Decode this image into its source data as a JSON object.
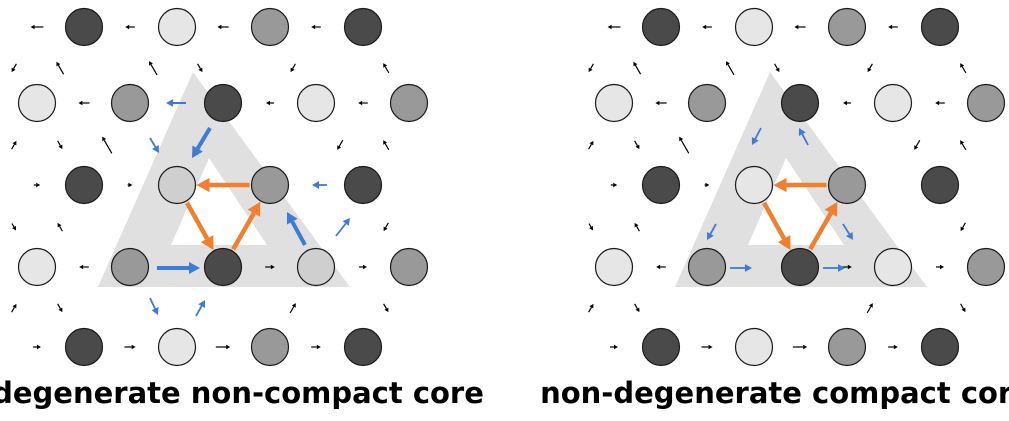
{
  "panels": [
    {
      "caption": "degenerate non-compact core"
    },
    {
      "caption": "non-degenerate compact core"
    }
  ],
  "colors": {
    "site_dark": "#4a4a4a",
    "site_mid": "#999999",
    "site_light": "#e6e6e6",
    "site_core_light": "#cfcfcf",
    "triangle_highlight": "#e0e0e0",
    "core_current_arrow": "#f07f2e",
    "secondary_current_arrow": "#3c7bd6",
    "background_arrow": "#000000"
  },
  "icons": {
    "site": "circle-site",
    "current": "arrow"
  }
}
